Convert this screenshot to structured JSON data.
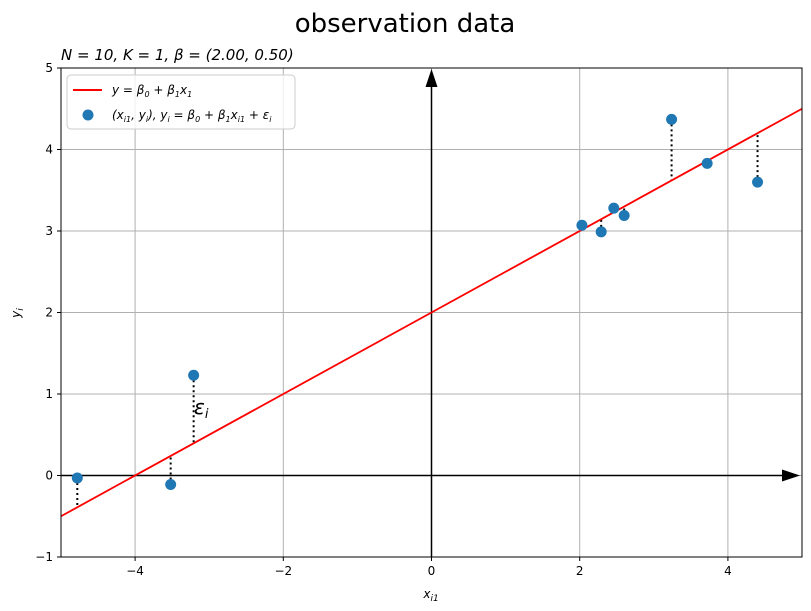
{
  "chart_data": {
    "type": "scatter",
    "title": "observation data",
    "subtitle": "N = 10, K = 1, β = (2.00, 0.50)",
    "xlabel": "x_i1",
    "ylabel": "y_i",
    "xlim": [
      -5,
      5
    ],
    "ylim": [
      -1,
      5
    ],
    "x_ticks": [
      -4,
      -2,
      0,
      2,
      4
    ],
    "y_ticks": [
      -1,
      0,
      1,
      2,
      3,
      4,
      5
    ],
    "x_tick_labels": [
      "−4",
      "−2",
      "0",
      "2",
      "4"
    ],
    "y_tick_labels": [
      "−1",
      "0",
      "1",
      "2",
      "3",
      "4",
      "5"
    ],
    "grid": true,
    "legend_position": "top-left",
    "colors": {
      "line": "#ff0000",
      "points": "#1f77b4",
      "axes_arrows": "#000000",
      "grid": "#b0b0b0"
    },
    "line": {
      "name": "y = β0 + β1x1",
      "intercept": 2.0,
      "slope": 0.5
    },
    "scatter": {
      "name": "(xi1, yi), yi = β0 + β1xi1 + εi",
      "x": [
        -4.78,
        -3.52,
        -3.21,
        2.03,
        2.29,
        2.46,
        2.6,
        3.24,
        3.72,
        4.4
      ],
      "y": [
        -0.03,
        -0.11,
        1.23,
        3.07,
        2.99,
        3.28,
        3.19,
        4.37,
        3.83,
        3.6
      ]
    },
    "annotation": "εi"
  }
}
